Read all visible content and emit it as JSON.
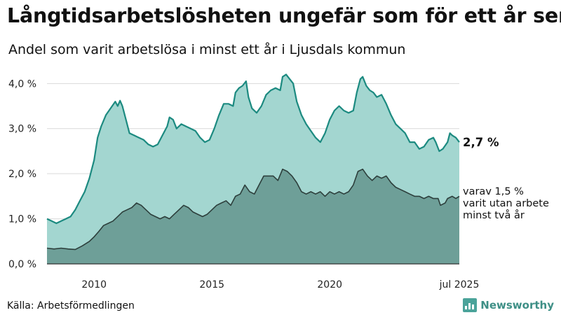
{
  "header": {
    "title": "Långtidsarbetslösheten ungefär som för ett år sen",
    "subtitle": "Andel som varit arbetslösa i minst ett år i Ljusdals kommun"
  },
  "footer": {
    "source": "Källa: Arbetsförmedlingen",
    "brand": "Newsworthy"
  },
  "colors": {
    "total_fill": "#a3d6d0",
    "total_line": "#1c8a80",
    "long_fill": "#6e9f98",
    "long_line": "#2d3f3c",
    "grid": "#d9d9d9"
  },
  "chart_data": {
    "type": "area",
    "x_range": [
      "2008-01",
      "2025-07"
    ],
    "ylim": [
      0,
      4.3
    ],
    "y_ticks": [
      {
        "value": 0,
        "label": "0,0 %"
      },
      {
        "value": 1,
        "label": "1,0 %"
      },
      {
        "value": 2,
        "label": "2,0 %"
      },
      {
        "value": 3,
        "label": "3,0 %"
      },
      {
        "value": 4,
        "label": "4,0 %"
      }
    ],
    "x_ticks": [
      {
        "value": 2010,
        "label": "2010"
      },
      {
        "value": 2015,
        "label": "2015"
      },
      {
        "value": 2020,
        "label": "2020"
      },
      {
        "value": 2025.5,
        "label": "jul 2025"
      }
    ],
    "grid": true,
    "annotations": {
      "total_end": "2,7 %",
      "long_end": [
        "varav 1,5 %",
        "varit utan arbete",
        "minst två år"
      ]
    },
    "series": [
      {
        "key": "total",
        "points": [
          [
            2008.0,
            1.0
          ],
          [
            2008.2,
            0.95
          ],
          [
            2008.4,
            0.9
          ],
          [
            2008.6,
            0.95
          ],
          [
            2008.8,
            1.0
          ],
          [
            2009.0,
            1.05
          ],
          [
            2009.2,
            1.2
          ],
          [
            2009.4,
            1.4
          ],
          [
            2009.6,
            1.6
          ],
          [
            2009.8,
            1.9
          ],
          [
            2010.0,
            2.3
          ],
          [
            2010.15,
            2.8
          ],
          [
            2010.3,
            3.05
          ],
          [
            2010.5,
            3.3
          ],
          [
            2010.7,
            3.45
          ],
          [
            2010.9,
            3.6
          ],
          [
            2011.0,
            3.5
          ],
          [
            2011.1,
            3.62
          ],
          [
            2011.2,
            3.5
          ],
          [
            2011.35,
            3.2
          ],
          [
            2011.5,
            2.9
          ],
          [
            2011.7,
            2.85
          ],
          [
            2011.9,
            2.8
          ],
          [
            2012.1,
            2.75
          ],
          [
            2012.3,
            2.65
          ],
          [
            2012.5,
            2.6
          ],
          [
            2012.7,
            2.65
          ],
          [
            2012.9,
            2.85
          ],
          [
            2013.1,
            3.05
          ],
          [
            2013.2,
            3.25
          ],
          [
            2013.35,
            3.2
          ],
          [
            2013.5,
            3.0
          ],
          [
            2013.7,
            3.1
          ],
          [
            2013.9,
            3.05
          ],
          [
            2014.1,
            3.0
          ],
          [
            2014.3,
            2.95
          ],
          [
            2014.5,
            2.8
          ],
          [
            2014.7,
            2.7
          ],
          [
            2014.9,
            2.75
          ],
          [
            2015.1,
            3.0
          ],
          [
            2015.3,
            3.3
          ],
          [
            2015.5,
            3.55
          ],
          [
            2015.7,
            3.55
          ],
          [
            2015.9,
            3.5
          ],
          [
            2016.0,
            3.8
          ],
          [
            2016.15,
            3.9
          ],
          [
            2016.3,
            3.95
          ],
          [
            2016.45,
            4.05
          ],
          [
            2016.55,
            3.7
          ],
          [
            2016.7,
            3.45
          ],
          [
            2016.9,
            3.35
          ],
          [
            2017.1,
            3.5
          ],
          [
            2017.3,
            3.75
          ],
          [
            2017.5,
            3.85
          ],
          [
            2017.7,
            3.9
          ],
          [
            2017.9,
            3.85
          ],
          [
            2018.0,
            4.15
          ],
          [
            2018.15,
            4.2
          ],
          [
            2018.3,
            4.1
          ],
          [
            2018.45,
            4.0
          ],
          [
            2018.6,
            3.6
          ],
          [
            2018.8,
            3.3
          ],
          [
            2019.0,
            3.1
          ],
          [
            2019.2,
            2.95
          ],
          [
            2019.4,
            2.8
          ],
          [
            2019.6,
            2.7
          ],
          [
            2019.8,
            2.9
          ],
          [
            2020.0,
            3.2
          ],
          [
            2020.2,
            3.4
          ],
          [
            2020.4,
            3.5
          ],
          [
            2020.6,
            3.4
          ],
          [
            2020.8,
            3.35
          ],
          [
            2021.0,
            3.4
          ],
          [
            2021.15,
            3.8
          ],
          [
            2021.3,
            4.1
          ],
          [
            2021.4,
            4.15
          ],
          [
            2021.55,
            3.95
          ],
          [
            2021.7,
            3.85
          ],
          [
            2021.85,
            3.8
          ],
          [
            2022.0,
            3.7
          ],
          [
            2022.2,
            3.75
          ],
          [
            2022.4,
            3.55
          ],
          [
            2022.6,
            3.3
          ],
          [
            2022.8,
            3.1
          ],
          [
            2023.0,
            3.0
          ],
          [
            2023.2,
            2.9
          ],
          [
            2023.4,
            2.7
          ],
          [
            2023.6,
            2.7
          ],
          [
            2023.8,
            2.55
          ],
          [
            2024.0,
            2.6
          ],
          [
            2024.2,
            2.75
          ],
          [
            2024.4,
            2.8
          ],
          [
            2024.5,
            2.7
          ],
          [
            2024.65,
            2.5
          ],
          [
            2024.8,
            2.55
          ],
          [
            2025.0,
            2.7
          ],
          [
            2025.1,
            2.9
          ],
          [
            2025.2,
            2.85
          ],
          [
            2025.35,
            2.8
          ],
          [
            2025.5,
            2.7
          ]
        ]
      },
      {
        "key": "long",
        "points": [
          [
            2008.0,
            0.35
          ],
          [
            2008.3,
            0.33
          ],
          [
            2008.6,
            0.35
          ],
          [
            2008.9,
            0.33
          ],
          [
            2009.2,
            0.32
          ],
          [
            2009.5,
            0.4
          ],
          [
            2009.8,
            0.5
          ],
          [
            2010.0,
            0.6
          ],
          [
            2010.2,
            0.72
          ],
          [
            2010.4,
            0.85
          ],
          [
            2010.6,
            0.9
          ],
          [
            2010.8,
            0.95
          ],
          [
            2011.0,
            1.05
          ],
          [
            2011.2,
            1.15
          ],
          [
            2011.4,
            1.2
          ],
          [
            2011.6,
            1.25
          ],
          [
            2011.8,
            1.35
          ],
          [
            2012.0,
            1.3
          ],
          [
            2012.2,
            1.2
          ],
          [
            2012.4,
            1.1
          ],
          [
            2012.6,
            1.05
          ],
          [
            2012.8,
            1.0
          ],
          [
            2013.0,
            1.05
          ],
          [
            2013.2,
            1.0
          ],
          [
            2013.4,
            1.1
          ],
          [
            2013.6,
            1.2
          ],
          [
            2013.8,
            1.3
          ],
          [
            2014.0,
            1.25
          ],
          [
            2014.2,
            1.15
          ],
          [
            2014.4,
            1.1
          ],
          [
            2014.6,
            1.05
          ],
          [
            2014.8,
            1.1
          ],
          [
            2015.0,
            1.2
          ],
          [
            2015.2,
            1.3
          ],
          [
            2015.4,
            1.35
          ],
          [
            2015.6,
            1.4
          ],
          [
            2015.8,
            1.3
          ],
          [
            2016.0,
            1.5
          ],
          [
            2016.2,
            1.55
          ],
          [
            2016.4,
            1.75
          ],
          [
            2016.6,
            1.6
          ],
          [
            2016.8,
            1.55
          ],
          [
            2017.0,
            1.75
          ],
          [
            2017.2,
            1.95
          ],
          [
            2017.4,
            1.95
          ],
          [
            2017.6,
            1.95
          ],
          [
            2017.8,
            1.85
          ],
          [
            2018.0,
            2.1
          ],
          [
            2018.2,
            2.05
          ],
          [
            2018.4,
            1.95
          ],
          [
            2018.6,
            1.8
          ],
          [
            2018.8,
            1.6
          ],
          [
            2019.0,
            1.55
          ],
          [
            2019.2,
            1.6
          ],
          [
            2019.4,
            1.55
          ],
          [
            2019.6,
            1.6
          ],
          [
            2019.8,
            1.5
          ],
          [
            2020.0,
            1.6
          ],
          [
            2020.2,
            1.55
          ],
          [
            2020.4,
            1.6
          ],
          [
            2020.6,
            1.55
          ],
          [
            2020.8,
            1.6
          ],
          [
            2021.0,
            1.75
          ],
          [
            2021.2,
            2.05
          ],
          [
            2021.4,
            2.1
          ],
          [
            2021.6,
            1.95
          ],
          [
            2021.8,
            1.85
          ],
          [
            2022.0,
            1.95
          ],
          [
            2022.2,
            1.9
          ],
          [
            2022.4,
            1.95
          ],
          [
            2022.6,
            1.8
          ],
          [
            2022.8,
            1.7
          ],
          [
            2023.0,
            1.65
          ],
          [
            2023.2,
            1.6
          ],
          [
            2023.4,
            1.55
          ],
          [
            2023.6,
            1.5
          ],
          [
            2023.8,
            1.5
          ],
          [
            2024.0,
            1.45
          ],
          [
            2024.2,
            1.5
          ],
          [
            2024.4,
            1.45
          ],
          [
            2024.6,
            1.45
          ],
          [
            2024.7,
            1.3
          ],
          [
            2024.9,
            1.35
          ],
          [
            2025.0,
            1.45
          ],
          [
            2025.2,
            1.5
          ],
          [
            2025.35,
            1.45
          ],
          [
            2025.5,
            1.5
          ]
        ]
      }
    ]
  }
}
